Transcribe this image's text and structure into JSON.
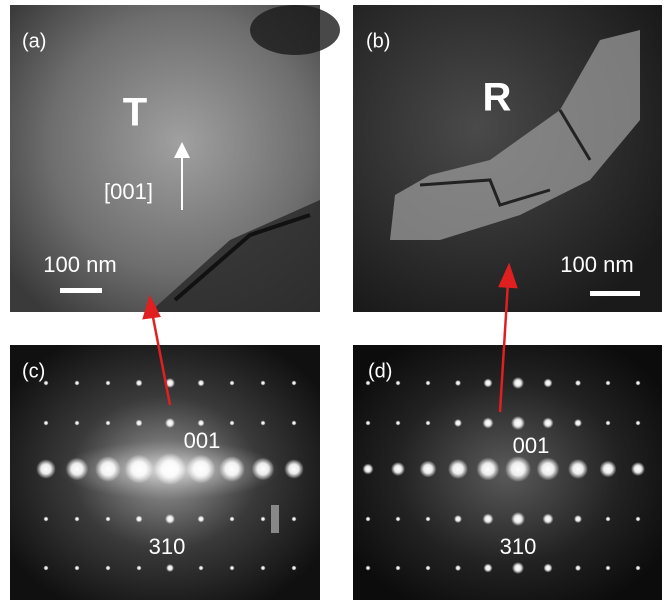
{
  "panels": [
    {
      "label": "(a)",
      "phase": "T",
      "direction": "[001]",
      "scale_bar": "100 nm"
    },
    {
      "label": "(b)",
      "phase": "R",
      "scale_bar": "100 nm"
    },
    {
      "label": "(c)",
      "spot_labels": [
        "001",
        "310"
      ]
    },
    {
      "label": "(d)",
      "spot_labels": [
        "001",
        "310"
      ]
    }
  ]
}
